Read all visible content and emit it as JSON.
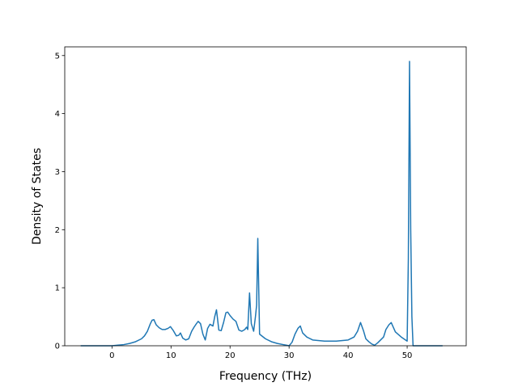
{
  "chart_data": {
    "type": "line",
    "title": "",
    "xlabel": "Frequency (THz)",
    "ylabel": "Density of States",
    "xlim": [
      -8,
      60
    ],
    "ylim": [
      0,
      5.15
    ],
    "xticks": [
      0,
      10,
      20,
      30,
      40,
      50
    ],
    "yticks": [
      0,
      1,
      2,
      3,
      4,
      5
    ],
    "grid": false,
    "line_color": "#1f77b4",
    "series": [
      {
        "x": [
          -5.3,
          -2,
          0,
          1,
          2,
          3,
          4,
          5,
          5.5,
          6,
          6.5,
          6.8,
          7.1,
          7.5,
          8,
          8.5,
          9,
          9.5,
          9.9,
          10.4,
          10.9,
          11.3,
          11.6,
          12,
          12.5,
          13,
          13.5,
          13.9,
          14.3,
          14.6,
          15,
          15.4,
          15.8,
          16.2,
          16.6,
          17.1,
          17.4,
          17.7,
          18.1,
          18.5,
          18.9,
          19.3,
          19.6,
          20,
          20.5,
          21.0,
          21.5,
          22.0,
          22.5,
          22.8,
          23.0,
          23.3,
          23.6,
          24.0,
          24.3,
          24.5,
          24.7,
          25,
          26,
          27,
          28,
          29,
          29.5,
          30,
          30.5,
          31,
          31.5,
          31.9,
          32.3,
          33,
          34,
          36,
          38,
          40,
          41,
          41.6,
          42.1,
          42.6,
          43,
          43.5,
          44,
          44.5,
          45,
          45.5,
          46,
          46.4,
          46.9,
          47.3,
          48,
          49,
          50.0,
          50.2,
          50.4,
          50.6,
          50.8,
          51,
          51.5,
          53,
          56
        ],
        "y": [
          0,
          0,
          0,
          0.01,
          0.02,
          0.04,
          0.07,
          0.12,
          0.17,
          0.25,
          0.38,
          0.44,
          0.45,
          0.36,
          0.31,
          0.28,
          0.28,
          0.3,
          0.33,
          0.26,
          0.17,
          0.18,
          0.22,
          0.13,
          0.1,
          0.12,
          0.25,
          0.32,
          0.38,
          0.42,
          0.38,
          0.2,
          0.1,
          0.3,
          0.37,
          0.34,
          0.5,
          0.62,
          0.27,
          0.26,
          0.4,
          0.57,
          0.58,
          0.52,
          0.46,
          0.42,
          0.27,
          0.25,
          0.28,
          0.32,
          0.28,
          0.91,
          0.38,
          0.25,
          0.5,
          0.7,
          1.85,
          0.2,
          0.12,
          0.07,
          0.04,
          0.02,
          0.01,
          0,
          0.06,
          0.2,
          0.3,
          0.34,
          0.22,
          0.15,
          0.1,
          0.08,
          0.08,
          0.1,
          0.15,
          0.25,
          0.4,
          0.26,
          0.12,
          0.07,
          0.03,
          0.01,
          0.05,
          0.1,
          0.15,
          0.28,
          0.36,
          0.4,
          0.24,
          0.15,
          0.08,
          1.5,
          4.9,
          2.0,
          0.5,
          0,
          0,
          0,
          0
        ]
      }
    ]
  }
}
